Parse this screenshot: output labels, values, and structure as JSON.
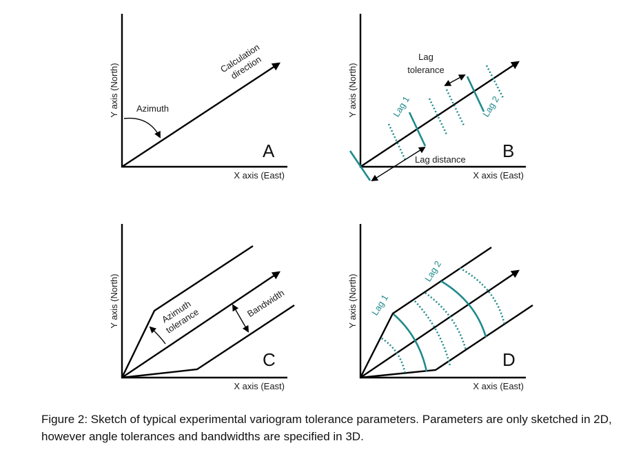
{
  "panels": {
    "a": {
      "letter": "A",
      "x_axis": "X axis (East)",
      "y_axis": "Y axis (North)",
      "azimuth": "Azimuth",
      "calc_line1": "Calculation",
      "calc_line2": "direction"
    },
    "b": {
      "letter": "B",
      "x_axis": "X axis (East)",
      "y_axis": "Y axis (North)",
      "lag_tol_line1": "Lag",
      "lag_tol_line2": "tolerance",
      "lag1": "Lag 1",
      "lag2": "Lag 2",
      "lag_distance": "Lag distance"
    },
    "c": {
      "letter": "C",
      "x_axis": "X axis (East)",
      "y_axis": "Y axis (North)",
      "az_tol_line1": "Azimuth",
      "az_tol_line2": "tolerance",
      "bandwidth": "Bandwidth"
    },
    "d": {
      "letter": "D",
      "x_axis": "X axis (East)",
      "y_axis": "Y axis (North)",
      "lag1": "Lag 1",
      "lag2": "Lag 2"
    }
  },
  "caption": "Figure 2:  Sketch of typical experimental variogram tolerance parameters.  Parameters are only sketched in 2D, however angle tolerances and bandwidths are specified in 3D.",
  "colors": {
    "line": "#000000",
    "accent": "#1f8a8c"
  }
}
